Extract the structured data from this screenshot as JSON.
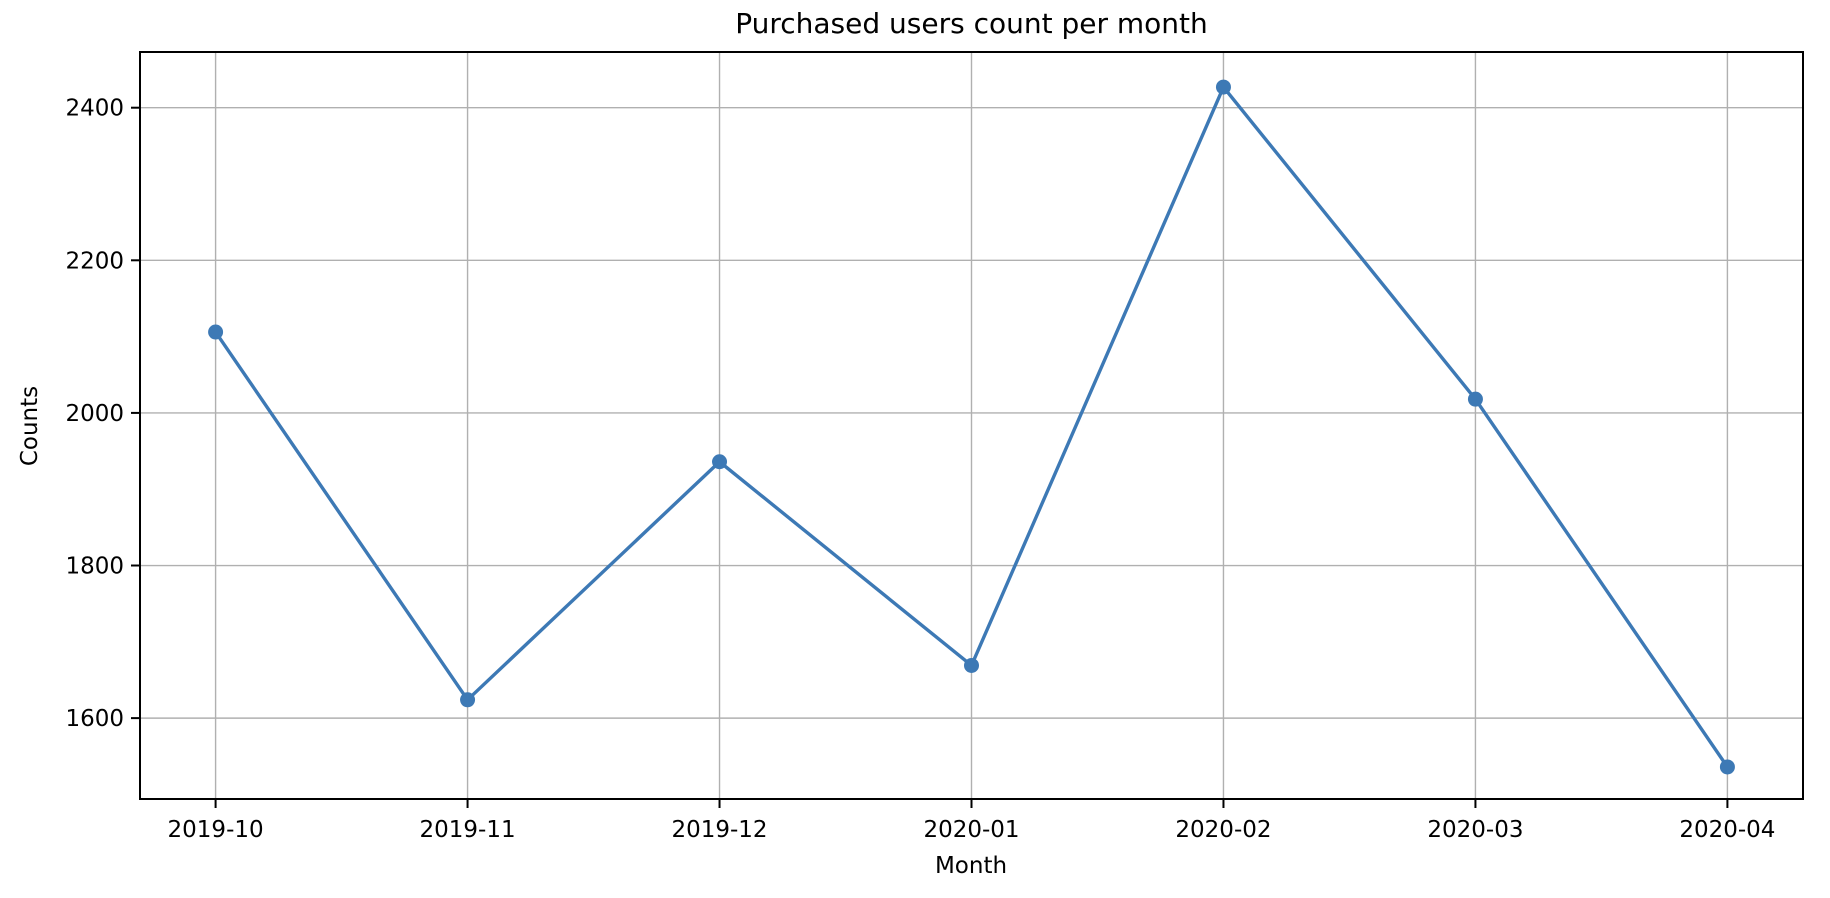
{
  "chart_data": {
    "type": "line",
    "title": "Purchased users count per month",
    "xlabel": "Month",
    "ylabel": "Counts",
    "categories": [
      "2019-10",
      "2019-11",
      "2019-12",
      "2020-01",
      "2020-02",
      "2020-03",
      "2020-04"
    ],
    "series": [
      {
        "name": "Purchased users count",
        "values": [
          2106,
          1624,
          1936,
          1669,
          2427,
          2018,
          1536
        ]
      }
    ],
    "yticks": [
      1600,
      1800,
      2000,
      2200,
      2400
    ],
    "ylim": [
      1494,
      2473
    ],
    "x_margin": 0.3,
    "grid": true,
    "legend": "none",
    "marker": "circle",
    "colors": {
      "line": "#3d79b5",
      "marker": "#3d79b5",
      "grid": "#b0b0b0",
      "spine": "#000000",
      "text": "#000000",
      "background": "#ffffff"
    }
  }
}
